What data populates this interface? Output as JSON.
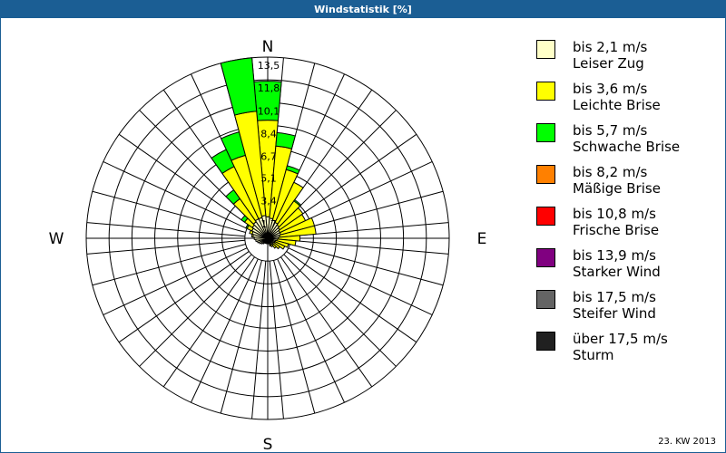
{
  "title": "Windstatistik [%]",
  "footer": "23. KW 2013",
  "directions": {
    "N": "N",
    "E": "E",
    "S": "S",
    "W": "W"
  },
  "legend": [
    {
      "speed": "bis 2,1 m/s",
      "name": "Leiser Zug",
      "color": "#ffffc8"
    },
    {
      "speed": "bis 3,6 m/s",
      "name": "Leichte Brise",
      "color": "#ffff00"
    },
    {
      "speed": "bis 5,7 m/s",
      "name": "Schwache Brise",
      "color": "#00ff00"
    },
    {
      "speed": "bis 8,2 m/s",
      "name": "Mäßige Brise",
      "color": "#ff8000"
    },
    {
      "speed": "bis 10,8 m/s",
      "name": "Frische Brise",
      "color": "#ff0000"
    },
    {
      "speed": "bis 13,9 m/s",
      "name": "Starker Wind",
      "color": "#800080"
    },
    {
      "speed": "bis 17,5 m/s",
      "name": "Steifer Wind",
      "color": "#646464"
    },
    {
      "speed": "über 17,5 m/s",
      "name": "Sturm",
      "color": "#202020"
    }
  ],
  "chart_data": {
    "type": "wind-rose",
    "title": "Windstatistik [%]",
    "subtitle": "23. KW 2013",
    "radial_unit": "%",
    "ring_labels": [
      "1,7",
      "3,4",
      "5,1",
      "6,7",
      "8,4",
      "10,1",
      "11,8",
      "13,5"
    ],
    "rlim": [
      0,
      13.5
    ],
    "sector_width_deg": 10,
    "series_names": [
      "bis 2,1 m/s Leiser Zug",
      "bis 3,6 m/s Leichte Brise",
      "bis 5,7 m/s Schwache Brise"
    ],
    "sectors": [
      {
        "dir": 0,
        "values": [
          1.6,
          7.2,
          2.9
        ]
      },
      {
        "dir": 10,
        "values": [
          1.5,
          5.4,
          1.0
        ]
      },
      {
        "dir": 20,
        "values": [
          1.4,
          3.9,
          0.3
        ]
      },
      {
        "dir": 30,
        "values": [
          1.3,
          3.3,
          0
        ]
      },
      {
        "dir": 40,
        "values": [
          1.2,
          2.2,
          0.1
        ]
      },
      {
        "dir": 50,
        "values": [
          1.1,
          2.1,
          0
        ]
      },
      {
        "dir": 60,
        "values": [
          1.0,
          2.1,
          0
        ]
      },
      {
        "dir": 70,
        "values": [
          1.0,
          2.6,
          0
        ]
      },
      {
        "dir": 80,
        "values": [
          0.9,
          2.7,
          0
        ]
      },
      {
        "dir": 90,
        "values": [
          0.8,
          1.6,
          0
        ]
      },
      {
        "dir": 100,
        "values": [
          0.7,
          1.4,
          0
        ]
      },
      {
        "dir": 110,
        "values": [
          0.6,
          1.0,
          0
        ]
      },
      {
        "dir": 120,
        "values": [
          0.6,
          0.8,
          0
        ]
      },
      {
        "dir": 130,
        "values": [
          0.5,
          0.6,
          0
        ]
      },
      {
        "dir": 140,
        "values": [
          0.6,
          0.3,
          0
        ]
      },
      {
        "dir": 150,
        "values": [
          0.5,
          0.2,
          0
        ]
      },
      {
        "dir": 160,
        "values": [
          0.5,
          0.1,
          0
        ]
      },
      {
        "dir": 170,
        "values": [
          0.4,
          0,
          0
        ]
      },
      {
        "dir": 180,
        "values": [
          0.4,
          0,
          0
        ]
      },
      {
        "dir": 190,
        "values": [
          0.4,
          0,
          0
        ]
      },
      {
        "dir": 200,
        "values": [
          0.4,
          0,
          0
        ]
      },
      {
        "dir": 210,
        "values": [
          0.4,
          0,
          0
        ]
      },
      {
        "dir": 220,
        "values": [
          0.5,
          0,
          0
        ]
      },
      {
        "dir": 230,
        "values": [
          0.6,
          0,
          0
        ]
      },
      {
        "dir": 240,
        "values": [
          0.7,
          0,
          0
        ]
      },
      {
        "dir": 250,
        "values": [
          0.8,
          0,
          0
        ]
      },
      {
        "dir": 260,
        "values": [
          0.9,
          0,
          0
        ]
      },
      {
        "dir": 270,
        "values": [
          1.0,
          0,
          0
        ]
      },
      {
        "dir": 280,
        "values": [
          1.1,
          0.1,
          0
        ]
      },
      {
        "dir": 290,
        "values": [
          1.2,
          0.2,
          0
        ]
      },
      {
        "dir": 300,
        "values": [
          1.3,
          0.4,
          0.1
        ]
      },
      {
        "dir": 310,
        "values": [
          1.4,
          0.7,
          0.3
        ]
      },
      {
        "dir": 320,
        "values": [
          1.5,
          2.1,
          0.8
        ]
      },
      {
        "dir": 330,
        "values": [
          1.6,
          4.3,
          1.4
        ]
      },
      {
        "dir": 340,
        "values": [
          1.6,
          4.8,
          1.8
        ]
      },
      {
        "dir": 350,
        "values": [
          1.7,
          7.8,
          4.0
        ]
      }
    ]
  }
}
